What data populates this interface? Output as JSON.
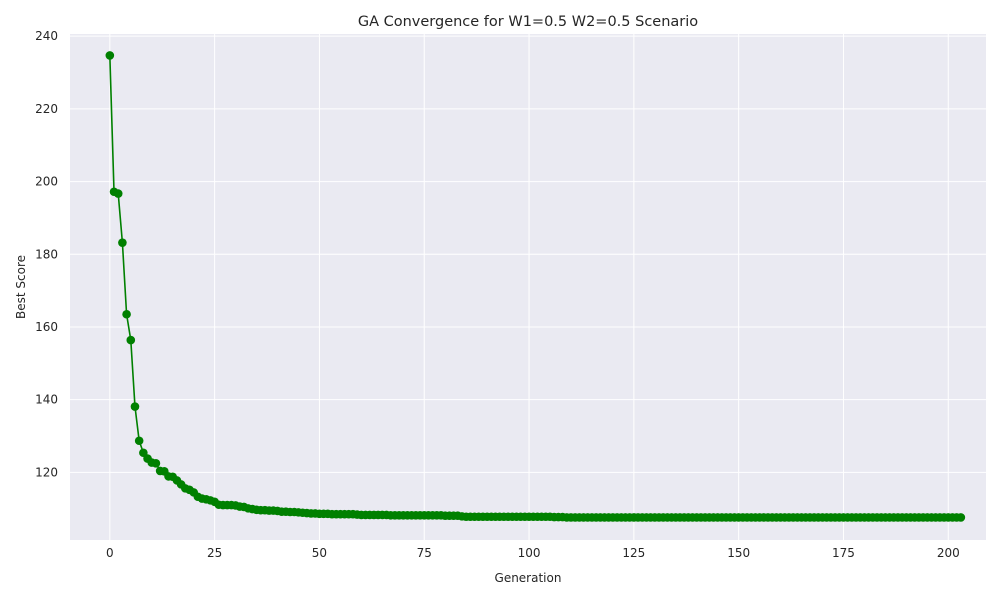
{
  "chart_data": {
    "type": "line",
    "title": "GA Convergence for W1=0.5 W2=0.5 Scenario",
    "xlabel": "Generation",
    "ylabel": "Best Score",
    "xlim": [
      -9.5,
      209
    ],
    "ylim": [
      101.4,
      240.6
    ],
    "xticks": [
      0,
      25,
      50,
      75,
      100,
      125,
      150,
      175,
      200
    ],
    "yticks": [
      120,
      140,
      160,
      180,
      200,
      220,
      240
    ],
    "grid": true,
    "legend": "none",
    "colors": {
      "line": "#008000",
      "plot_background": "#eaeaf2",
      "grid": "#ffffff"
    },
    "series": [
      {
        "values": [
          234.7,
          197.2,
          196.7,
          183.2,
          163.5,
          156.4,
          138.1,
          128.7,
          125.4,
          123.8,
          122.7,
          122.5,
          120.4,
          120.3,
          118.9,
          118.8,
          117.8,
          116.7,
          115.6,
          115.2,
          114.5,
          113.3,
          112.8,
          112.6,
          112.3,
          111.9,
          111.1,
          111.0,
          111.0,
          111.0,
          110.9,
          110.6,
          110.5,
          110.1,
          109.9,
          109.7,
          109.6,
          109.6,
          109.5,
          109.5,
          109.4,
          109.2,
          109.2,
          109.1,
          109.1,
          109.0,
          108.9,
          108.8,
          108.7,
          108.7,
          108.6,
          108.6,
          108.6,
          108.5,
          108.5,
          108.5,
          108.5,
          108.5,
          108.5,
          108.4,
          108.3,
          108.3,
          108.3,
          108.3,
          108.3,
          108.3,
          108.3,
          108.2,
          108.2,
          108.2,
          108.2,
          108.2,
          108.2,
          108.2,
          108.2,
          108.2,
          108.2,
          108.2,
          108.2,
          108.2,
          108.1,
          108.1,
          108.1,
          108.1,
          107.9,
          107.8,
          107.8,
          107.8,
          107.8,
          107.8,
          107.8,
          107.8,
          107.8,
          107.8,
          107.8,
          107.8,
          107.8,
          107.8,
          107.8,
          107.8,
          107.8,
          107.8,
          107.8,
          107.8,
          107.8,
          107.8,
          107.7,
          107.7,
          107.7,
          107.6,
          107.6,
          107.6,
          107.6,
          107.6,
          107.6,
          107.6,
          107.6,
          107.6,
          107.6,
          107.6,
          107.6,
          107.6,
          107.6,
          107.6,
          107.6,
          107.6,
          107.6,
          107.6,
          107.6,
          107.6,
          107.6,
          107.6,
          107.6,
          107.6,
          107.6,
          107.6,
          107.6,
          107.6,
          107.6,
          107.6,
          107.6,
          107.6,
          107.6,
          107.6,
          107.6,
          107.6,
          107.6,
          107.6,
          107.6,
          107.6,
          107.6,
          107.6,
          107.6,
          107.6,
          107.6,
          107.6,
          107.6,
          107.6,
          107.6,
          107.6,
          107.6,
          107.6,
          107.6,
          107.6,
          107.6,
          107.6,
          107.6,
          107.6,
          107.6,
          107.6,
          107.6,
          107.6,
          107.6,
          107.6,
          107.6,
          107.6,
          107.6,
          107.6,
          107.6,
          107.6,
          107.6,
          107.6,
          107.6,
          107.6,
          107.6,
          107.6,
          107.6,
          107.6,
          107.6,
          107.6,
          107.6,
          107.6,
          107.6,
          107.6,
          107.6,
          107.6,
          107.6,
          107.6,
          107.6,
          107.6,
          107.6,
          107.6,
          107.6,
          107.6
        ]
      }
    ]
  }
}
